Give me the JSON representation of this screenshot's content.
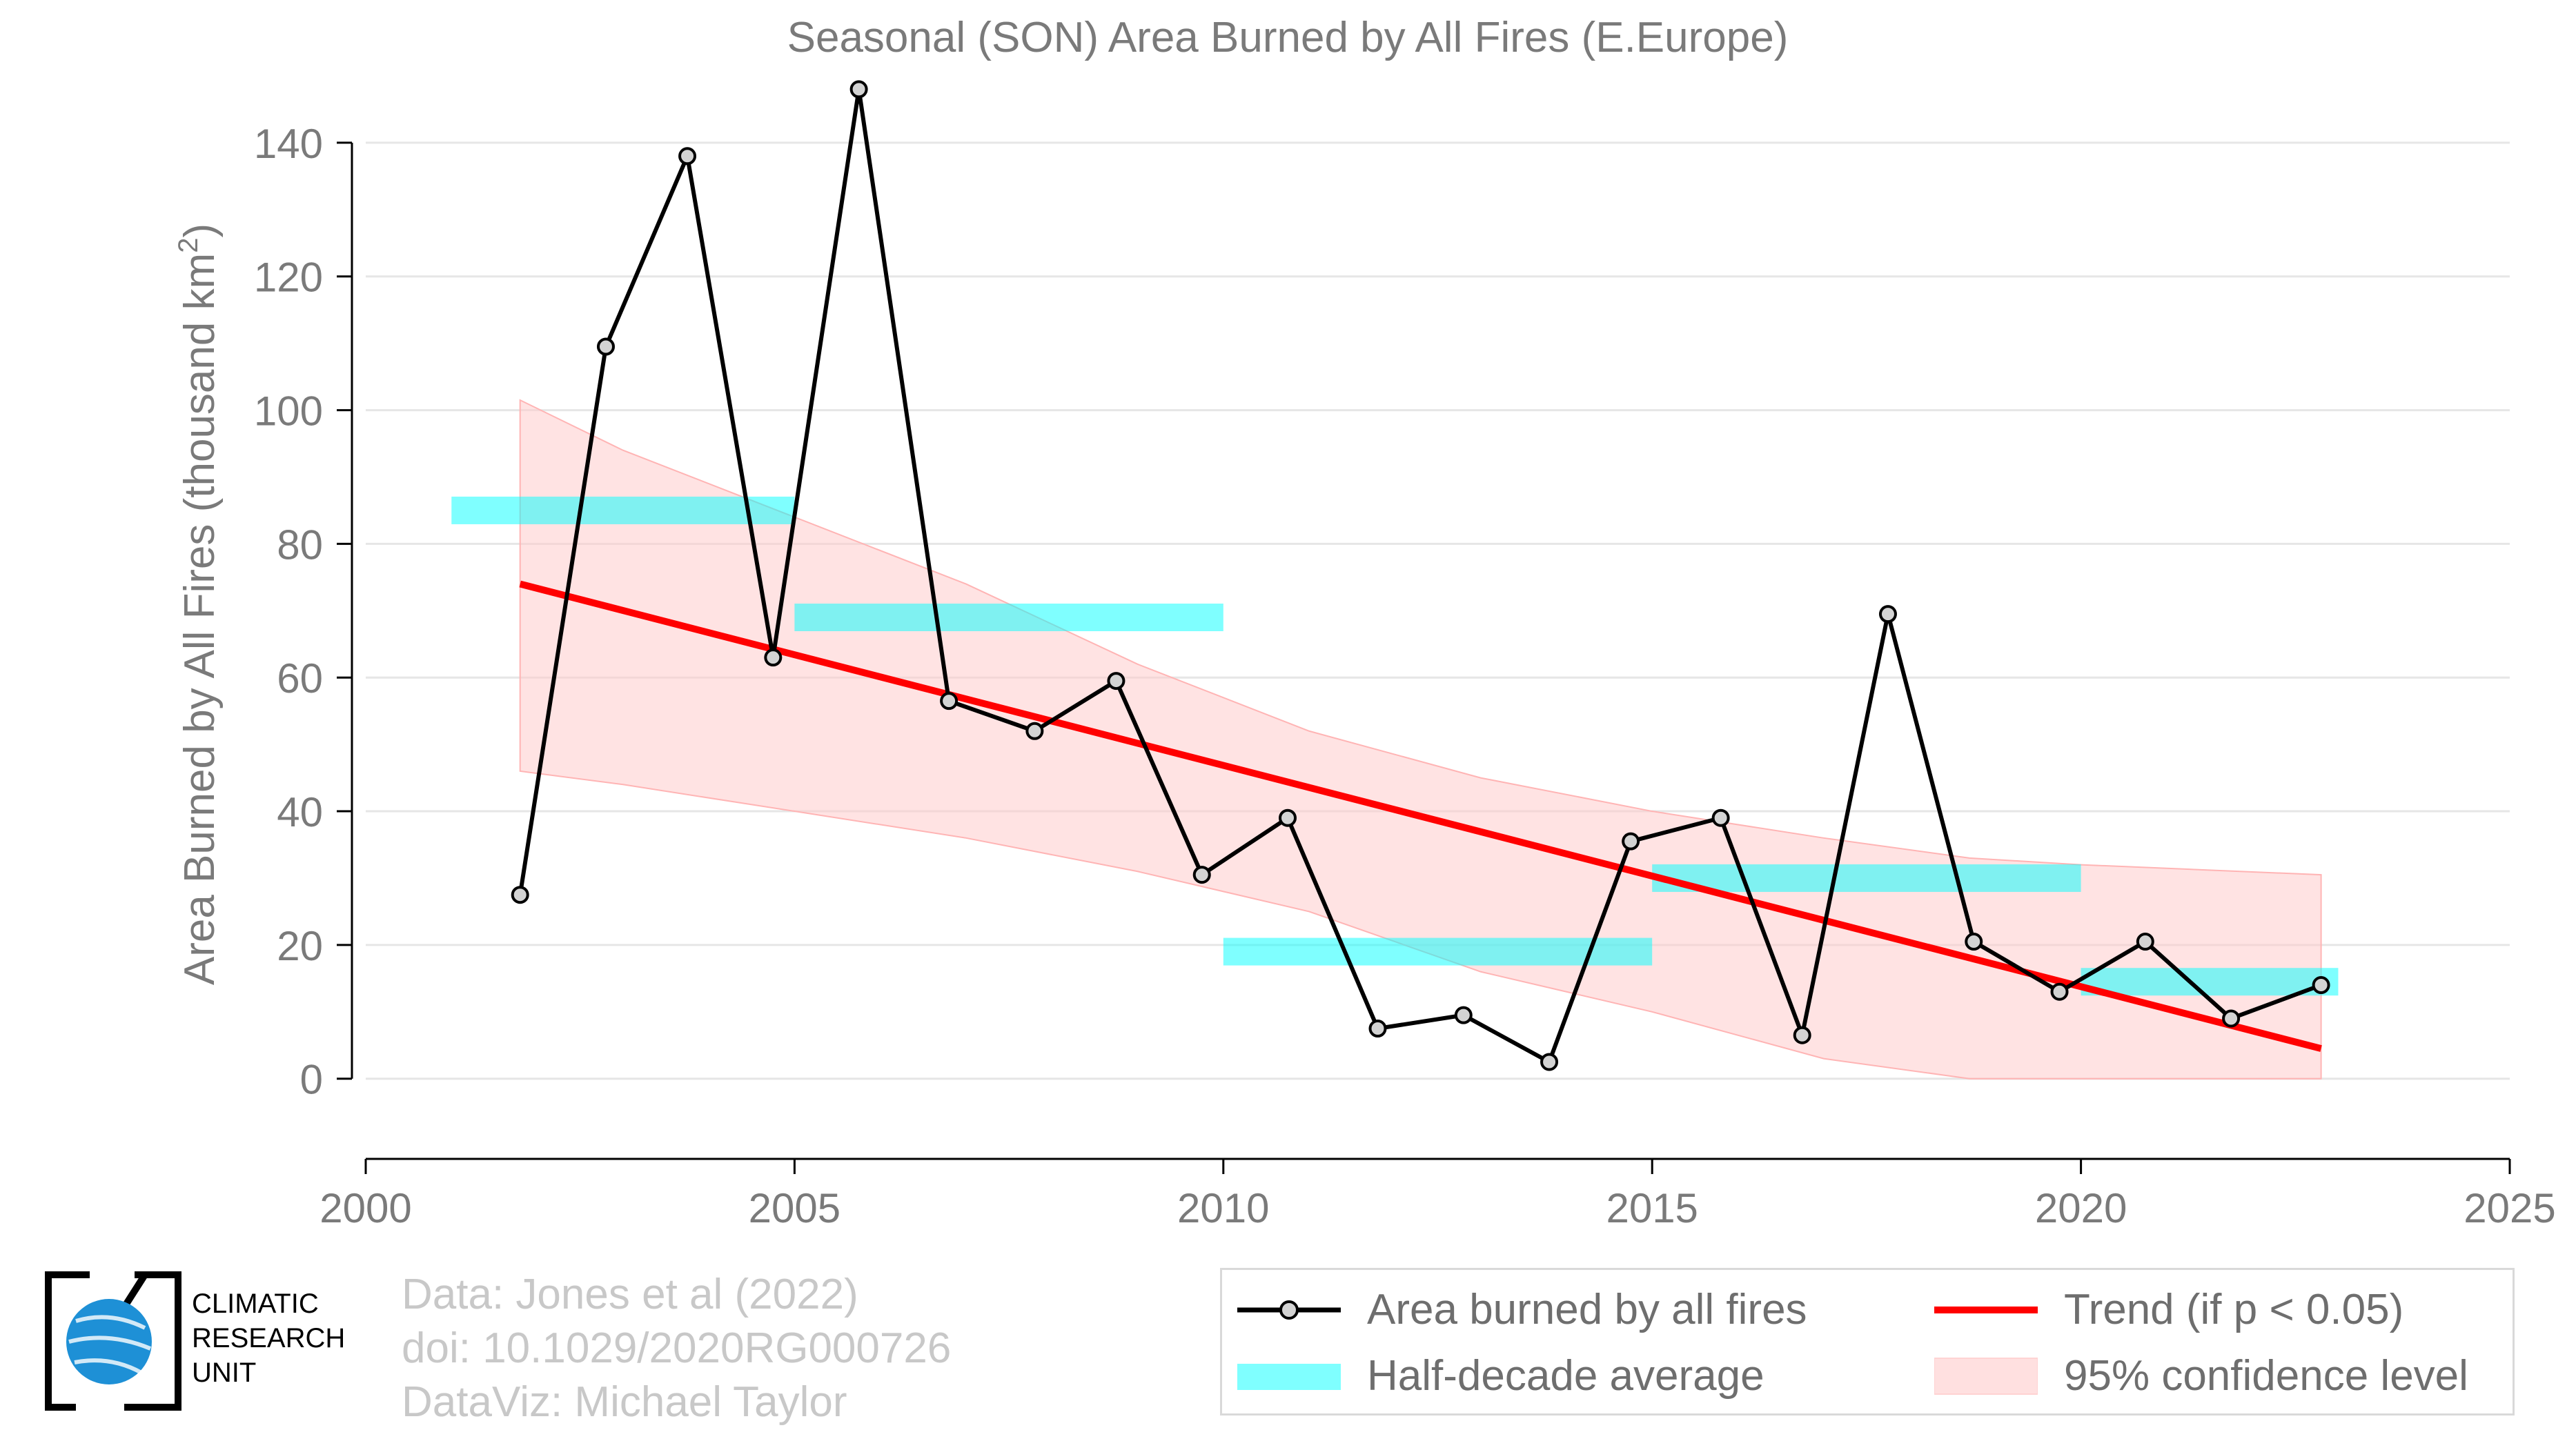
{
  "chart_data": {
    "type": "line",
    "title": "Seasonal (SON) Area Burned by All Fires (E.Europe)",
    "ylabel": "Area Burned by All Fires (thousand km²)",
    "ylabel_main": "Area Burned by All Fires (thousand km",
    "ylabel_sup": "2",
    "ylabel_end": ")",
    "xlabel": "",
    "xlim": [
      2000,
      2025
    ],
    "ylim": [
      -12,
      150
    ],
    "xticks": [
      2000,
      2005,
      2010,
      2015,
      2020,
      2025
    ],
    "yticks": [
      0,
      20,
      40,
      60,
      80,
      100,
      120,
      140
    ],
    "grid": "horizontal",
    "legend_placement": "bottom-right",
    "series": [
      {
        "name": "Area burned by all fires",
        "color": "#000000",
        "marker_fill": "#d3d3d3",
        "x": [
          2001.8,
          2002.8,
          2003.75,
          2004.75,
          2005.75,
          2006.8,
          2007.8,
          2008.75,
          2009.75,
          2010.75,
          2011.8,
          2012.8,
          2013.8,
          2014.75,
          2015.8,
          2016.75,
          2017.75,
          2018.75,
          2019.75,
          2020.75,
          2021.75,
          2022.8
        ],
        "values": [
          27.5,
          109.5,
          138,
          63,
          148,
          56.5,
          52,
          59.5,
          30.5,
          39,
          7.5,
          9.5,
          2.5,
          35.5,
          39,
          6.5,
          69.5,
          20.5,
          13,
          20.5,
          9,
          14
        ]
      }
    ],
    "half_decade_average": {
      "name": "Half-decade average",
      "color": "#00ffff",
      "segments": [
        {
          "x0": 2001,
          "x1": 2005,
          "y": 85
        },
        {
          "x0": 2005,
          "x1": 2010,
          "y": 69
        },
        {
          "x0": 2010,
          "x1": 2015,
          "y": 19
        },
        {
          "x0": 2015,
          "x1": 2020,
          "y": 30
        },
        {
          "x0": 2020,
          "x1": 2023,
          "y": 14.5
        }
      ]
    },
    "trend": {
      "name": "Trend (if p < 0.05)",
      "color": "#ff0000",
      "x": [
        2001.8,
        2022.8
      ],
      "values": [
        74,
        4.5
      ]
    },
    "confidence": {
      "name": "95% confidence level",
      "color": "#ffc8c8",
      "x": [
        2001.8,
        2003,
        2005,
        2007,
        2009,
        2011,
        2013,
        2015,
        2017,
        2018.7,
        2020,
        2022.8
      ],
      "upper": [
        101.5,
        94,
        84,
        74,
        62,
        52,
        45,
        40,
        36,
        33,
        32,
        30.5
      ],
      "lower": [
        46,
        44,
        40,
        36,
        31,
        25,
        16,
        10,
        3,
        0,
        0,
        0
      ]
    }
  },
  "legend": {
    "items": [
      {
        "label": "Area burned by all fires"
      },
      {
        "label": "Trend (if p < 0.05)"
      },
      {
        "label": "Half-decade average"
      },
      {
        "label": "95% confidence level"
      }
    ]
  },
  "logo": {
    "line1": "CLIMATIC",
    "line2": "RESEARCH",
    "line3": "UNIT",
    "globe_color": "#1e90d6"
  },
  "credits": {
    "data": "Data: Jones et al (2022)",
    "doi": "doi: 10.1029/2020RG000726",
    "dataviz": "DataViz: Michael Taylor"
  }
}
